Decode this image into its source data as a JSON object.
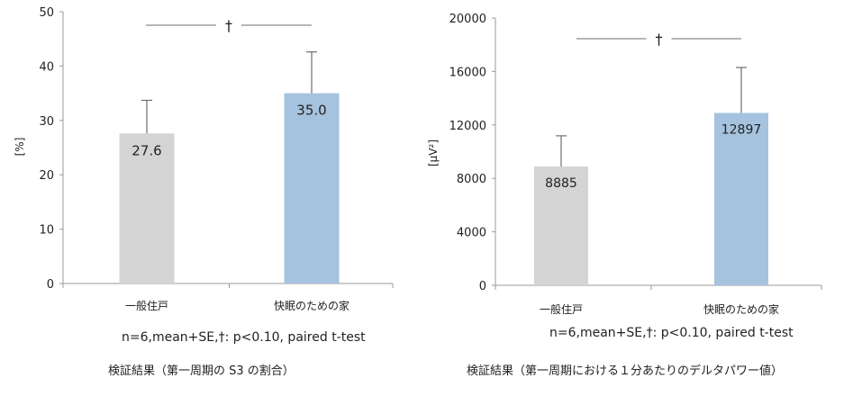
{
  "colors": {
    "gray_bar": "#d4d4d4",
    "blue_bar": "#a5c3df",
    "axis": "#9a9a9a",
    "error": "#6d6d6d",
    "text": "#222222"
  },
  "chart_data": [
    {
      "type": "bar",
      "categories": [
        "一般住戸",
        "快眠のための家"
      ],
      "values": [
        27.6,
        35.0
      ],
      "error_se": [
        6.1,
        7.6
      ],
      "data_labels": [
        "27.6",
        "35.0"
      ],
      "ylabel": "[%]",
      "ylim": [
        0,
        50
      ],
      "yticks": [
        "0",
        "10",
        "20",
        "30",
        "40",
        "50"
      ],
      "significance": "†",
      "note": "n=6,mean+SE,†: p<0.10, paired t-test",
      "caption": "検証結果（第一周期の S3 の割合）",
      "grid": false,
      "bar_colors": [
        "#d4d4d4",
        "#a5c3df"
      ]
    },
    {
      "type": "bar",
      "categories": [
        "一般住戸",
        "快眠のための家"
      ],
      "values": [
        8885,
        12897
      ],
      "error_se": [
        2300,
        3400
      ],
      "data_labels": [
        "8885",
        "12897"
      ],
      "ylabel": "[μV²]",
      "ylim": [
        0,
        20000
      ],
      "yticks": [
        "0",
        "4000",
        "8000",
        "12000",
        "16000",
        "20000"
      ],
      "significance": "†",
      "note": "n=6,mean+SE,†: p<0.10, paired t-test",
      "caption": "検証結果（第一周期における１分あたりのデルタパワー値）",
      "grid": false,
      "bar_colors": [
        "#d4d4d4",
        "#a5c3df"
      ]
    }
  ]
}
